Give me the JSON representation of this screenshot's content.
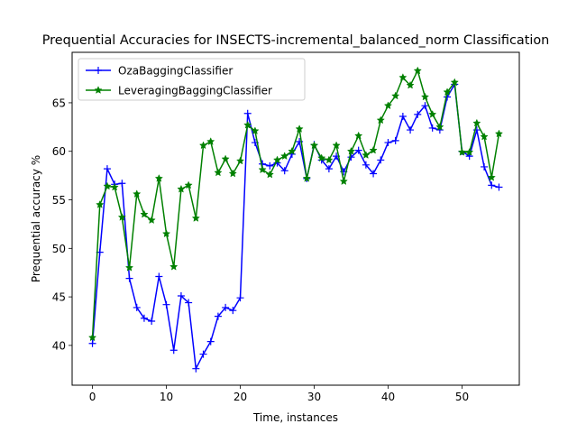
{
  "chart_data": {
    "type": "line",
    "title": "Prequential Accuracies for INSECTS-incremental_balanced_norm Classification",
    "xlabel": "Time, instances",
    "ylabel": "Prequential accuracy %",
    "xlim": [
      -2.75,
      57.75
    ],
    "ylim": [
      35.9,
      70.2
    ],
    "xticks": [
      0,
      10,
      20,
      30,
      40,
      50
    ],
    "yticks": [
      40,
      45,
      50,
      55,
      60,
      65
    ],
    "grid": false,
    "legend_position": "upper-left",
    "x": [
      0,
      1,
      2,
      3,
      4,
      5,
      6,
      7,
      8,
      9,
      10,
      11,
      12,
      13,
      14,
      15,
      16,
      17,
      18,
      19,
      20,
      21,
      22,
      23,
      24,
      25,
      26,
      27,
      28,
      29,
      30,
      31,
      32,
      33,
      34,
      35,
      36,
      37,
      38,
      39,
      40,
      41,
      42,
      43,
      44,
      45,
      46,
      47,
      48,
      49,
      50,
      51,
      52,
      53,
      54,
      55
    ],
    "series": [
      {
        "name": "OzaBaggingClassifier",
        "color": "#0000ff",
        "marker": "plus",
        "values": [
          40.2,
          49.6,
          58.2,
          56.6,
          56.7,
          46.9,
          43.9,
          42.8,
          42.5,
          47.1,
          44.2,
          39.5,
          45.1,
          44.4,
          37.6,
          39.1,
          40.4,
          43.0,
          43.9,
          43.6,
          44.9,
          63.9,
          60.9,
          58.7,
          58.5,
          58.8,
          58.0,
          59.7,
          61.0,
          57.2,
          60.7,
          59.1,
          58.2,
          59.5,
          57.9,
          59.4,
          60.1,
          58.6,
          57.7,
          59.1,
          60.9,
          61.1,
          63.6,
          62.2,
          63.8,
          64.7,
          62.4,
          62.2,
          65.6,
          66.9,
          60.0,
          59.5,
          62.2,
          58.4,
          56.5,
          56.3
        ]
      },
      {
        "name": "LeveragingBaggingClassifier",
        "color": "#008000",
        "marker": "star",
        "values": [
          40.8,
          54.5,
          56.4,
          56.3,
          53.2,
          48.0,
          55.6,
          53.5,
          52.9,
          57.2,
          51.5,
          48.1,
          56.1,
          56.5,
          53.1,
          60.6,
          61.0,
          57.8,
          59.2,
          57.7,
          59.0,
          62.7,
          62.1,
          58.1,
          57.6,
          59.1,
          59.5,
          60.0,
          62.3,
          57.2,
          60.6,
          59.3,
          59.1,
          60.6,
          56.9,
          60.0,
          61.6,
          59.6,
          60.1,
          63.2,
          64.7,
          65.7,
          67.6,
          66.8,
          68.3,
          65.6,
          63.8,
          62.5,
          66.1,
          67.1,
          59.9,
          59.9,
          62.9,
          61.5,
          57.3,
          61.8
        ]
      }
    ]
  }
}
